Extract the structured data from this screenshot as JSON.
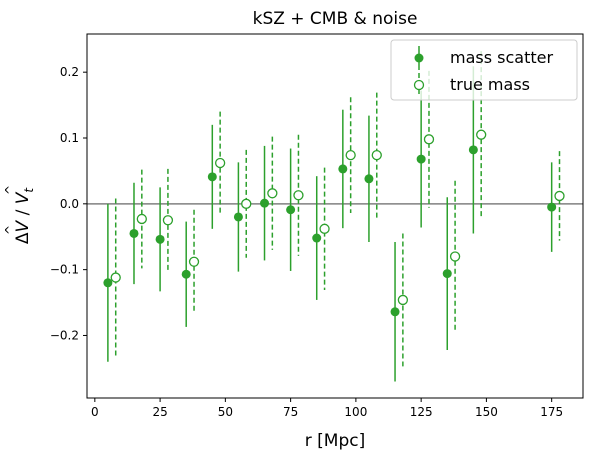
{
  "chart_data": {
    "type": "scatter",
    "title": "kSZ + CMB & noise",
    "xlabel": "r [Mpc]",
    "ylabel": "ΔV̂ / V̂_t",
    "ylabel_parts": {
      "a": "Δ",
      "b": "V",
      "c": " / ",
      "d": "V",
      "e": "t",
      "hat": "^"
    },
    "xlim": [
      -3,
      187
    ],
    "ylim": [
      -0.295,
      0.258
    ],
    "xticks": [
      0,
      25,
      50,
      75,
      100,
      125,
      150,
      175
    ],
    "xtick_labels": [
      "0",
      "25",
      "50",
      "75",
      "100",
      "125",
      "150",
      "175"
    ],
    "yticks": [
      -0.2,
      -0.1,
      0.0,
      0.1,
      0.2
    ],
    "ytick_labels": [
      "−0.2",
      "−0.1",
      "0.0",
      "0.1",
      "0.2"
    ],
    "reference_line": 0.0,
    "legend_position": "top-right",
    "color": "#2ca02c",
    "ref_line_color": "#808080",
    "series": [
      {
        "name": "mass scatter",
        "marker": "filled",
        "errorbar_style": "solid",
        "x": [
          5,
          15,
          25,
          35,
          45,
          55,
          65,
          75,
          85,
          95,
          105,
          115,
          125,
          135,
          145,
          175
        ],
        "y": [
          -0.12,
          -0.045,
          -0.054,
          -0.107,
          0.041,
          -0.02,
          0.001,
          -0.009,
          -0.052,
          0.053,
          0.038,
          -0.164,
          0.068,
          -0.106,
          0.082,
          -0.005
        ],
        "yerr": [
          0.12,
          0.077,
          0.079,
          0.08,
          0.079,
          0.083,
          0.087,
          0.093,
          0.094,
          0.09,
          0.096,
          0.106,
          0.104,
          0.116,
          0.127,
          0.068
        ]
      },
      {
        "name": "true mass",
        "marker": "open",
        "errorbar_style": "dashed",
        "x": [
          8,
          18,
          28,
          38,
          48,
          58,
          68,
          78,
          88,
          98,
          108,
          118,
          128,
          138,
          148,
          178
        ],
        "y": [
          -0.112,
          -0.023,
          -0.025,
          -0.088,
          0.062,
          0.0,
          0.016,
          0.013,
          -0.038,
          0.074,
          0.074,
          -0.146,
          0.098,
          -0.08,
          0.105,
          0.012
        ],
        "yerr": [
          0.12,
          0.075,
          0.078,
          0.079,
          0.078,
          0.082,
          0.086,
          0.092,
          0.093,
          0.088,
          0.095,
          0.101,
          0.104,
          0.115,
          0.127,
          0.068
        ]
      }
    ]
  }
}
